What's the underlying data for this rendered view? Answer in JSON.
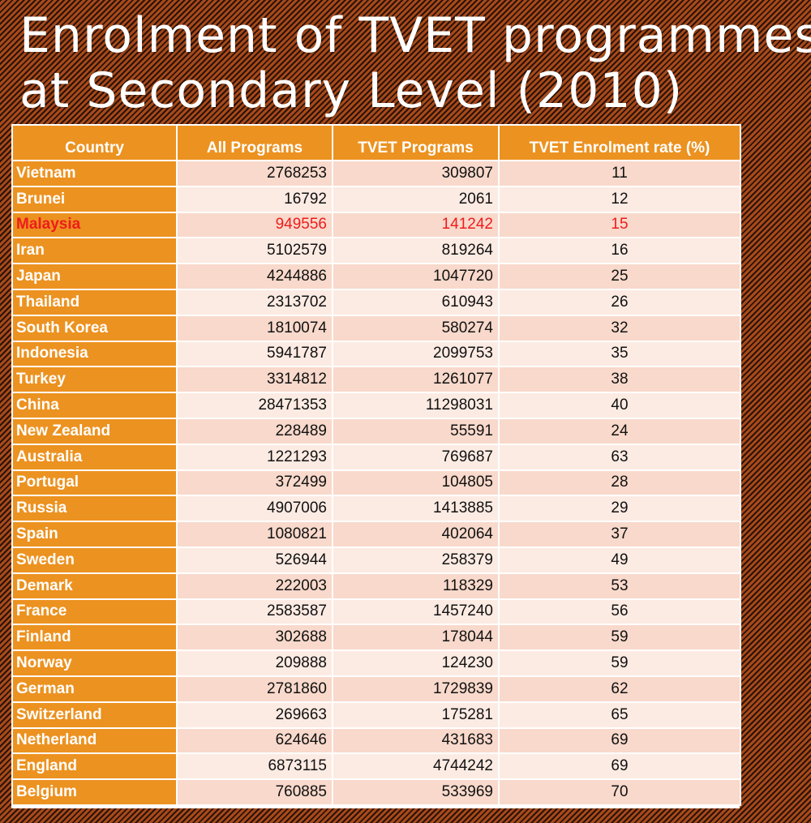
{
  "title": {
    "line1": "Enrolment of TVET programmes",
    "line2": "at Secondary Level (2010)"
  },
  "table": {
    "headers": [
      "Country",
      "All Programs",
      "TVET Programs",
      "TVET Enrolment rate (%)"
    ],
    "highlight_color": "#ee1c1c",
    "header_color": "#ec9220",
    "rows": [
      {
        "country": "Vietnam",
        "all": "2768253",
        "tvet": "309807",
        "rate": "11"
      },
      {
        "country": "Brunei",
        "all": "16792",
        "tvet": "2061",
        "rate": "12"
      },
      {
        "country": "Malaysia",
        "all": "949556",
        "tvet": "141242",
        "rate": "15",
        "highlight": true
      },
      {
        "country": "Iran",
        "all": "5102579",
        "tvet": "819264",
        "rate": "16"
      },
      {
        "country": "Japan",
        "all": "4244886",
        "tvet": "1047720",
        "rate": "25"
      },
      {
        "country": "Thailand",
        "all": "2313702",
        "tvet": "610943",
        "rate": "26"
      },
      {
        "country": "South Korea",
        "all": "1810074",
        "tvet": "580274",
        "rate": "32"
      },
      {
        "country": "Indonesia",
        "all": "5941787",
        "tvet": "2099753",
        "rate": "35"
      },
      {
        "country": "Turkey",
        "all": "3314812",
        "tvet": "1261077",
        "rate": "38"
      },
      {
        "country": "China",
        "all": "28471353",
        "tvet": "11298031",
        "rate": "40"
      },
      {
        "country": "New Zealand",
        "all": "228489",
        "tvet": "55591",
        "rate": "24"
      },
      {
        "country": "Australia",
        "all": "1221293",
        "tvet": "769687",
        "rate": "63"
      },
      {
        "country": "Portugal",
        "all": "372499",
        "tvet": "104805",
        "rate": "28"
      },
      {
        "country": "Russia",
        "all": "4907006",
        "tvet": "1413885",
        "rate": "29"
      },
      {
        "country": "Spain",
        "all": "1080821",
        "tvet": "402064",
        "rate": "37"
      },
      {
        "country": "Sweden",
        "all": "526944",
        "tvet": "258379",
        "rate": "49"
      },
      {
        "country": "Demark",
        "all": "222003",
        "tvet": "118329",
        "rate": "53"
      },
      {
        "country": "France",
        "all": "2583587",
        "tvet": "1457240",
        "rate": "56"
      },
      {
        "country": "Finland",
        "all": "302688",
        "tvet": "178044",
        "rate": "59"
      },
      {
        "country": "Norway",
        "all": "209888",
        "tvet": "124230",
        "rate": "59"
      },
      {
        "country": "German",
        "all": "2781860",
        "tvet": "1729839",
        "rate": "62"
      },
      {
        "country": "Switzerland",
        "all": "269663",
        "tvet": "175281",
        "rate": "65"
      },
      {
        "country": "Netherland",
        "all": "624646",
        "tvet": "431683",
        "rate": "69"
      },
      {
        "country": "England",
        "all": "6873115",
        "tvet": "4744242",
        "rate": "69"
      },
      {
        "country": "Belgium",
        "all": "760885",
        "tvet": "533969",
        "rate": "70"
      }
    ]
  }
}
